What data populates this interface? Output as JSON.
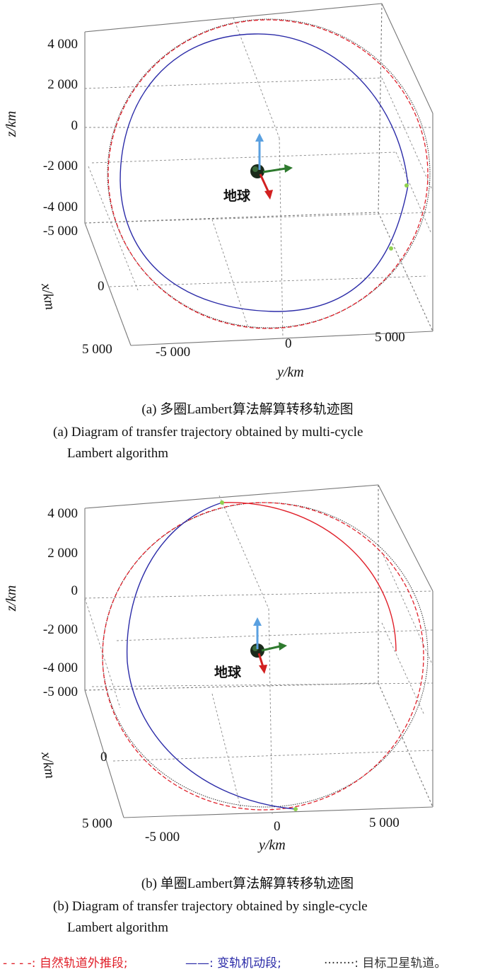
{
  "chart_data": [
    {
      "type": "3d-line",
      "panel": "a",
      "caption_zh": "(a) 多圈Lambert算法解算转移轨迹图",
      "caption_en_1": "(a) Diagram of transfer trajectory obtained by multi-cycle",
      "caption_en_2": "Lambert algorithm",
      "xlabel": "x/km",
      "ylabel": "y/km",
      "zlabel": "z/km",
      "x_ticks": [
        "5 000",
        "0",
        "-5 000"
      ],
      "y_ticks": [
        "-5 000",
        "0",
        "5 000"
      ],
      "z_ticks": [
        "4 000",
        "2 000",
        "0",
        "-2 000",
        "-4 000"
      ],
      "earth_label": "地球",
      "series": [
        {
          "name": "自然轨道外推段",
          "style": "dashed",
          "color": "#e0202a"
        },
        {
          "name": "变轨机动段",
          "style": "solid",
          "color": "#2b2ba8"
        },
        {
          "name": "目标卫星轨道",
          "style": "dotted",
          "color": "#3a3a3a"
        }
      ]
    },
    {
      "type": "3d-line",
      "panel": "b",
      "caption_zh": "(b) 单圈Lambert算法解算转移轨迹图",
      "caption_en_1": "(b) Diagram of transfer trajectory obtained by single-cycle",
      "caption_en_2": "Lambert algorithm",
      "xlabel": "x/km",
      "ylabel": "y/km",
      "zlabel": "z/km",
      "x_ticks": [
        "5 000",
        "0",
        "-5 000"
      ],
      "y_ticks": [
        "-5 000",
        "0",
        "5 000"
      ],
      "z_ticks": [
        "4 000",
        "2 000",
        "0",
        "-2 000",
        "-4 000"
      ],
      "earth_label": "地球",
      "series": [
        {
          "name": "自然轨道外推段",
          "style": "dashed",
          "color": "#e0202a"
        },
        {
          "name": "变轨机动段",
          "style": "solid",
          "color": "#2b2ba8"
        },
        {
          "name": "目标卫星轨道",
          "style": "dotted",
          "color": "#3a3a3a"
        }
      ]
    }
  ],
  "legend": {
    "item1": "- - - -: 自然轨道外推段;",
    "item2": "——: 变轨机动段;",
    "item3": "········: 目标卫星轨道。"
  }
}
